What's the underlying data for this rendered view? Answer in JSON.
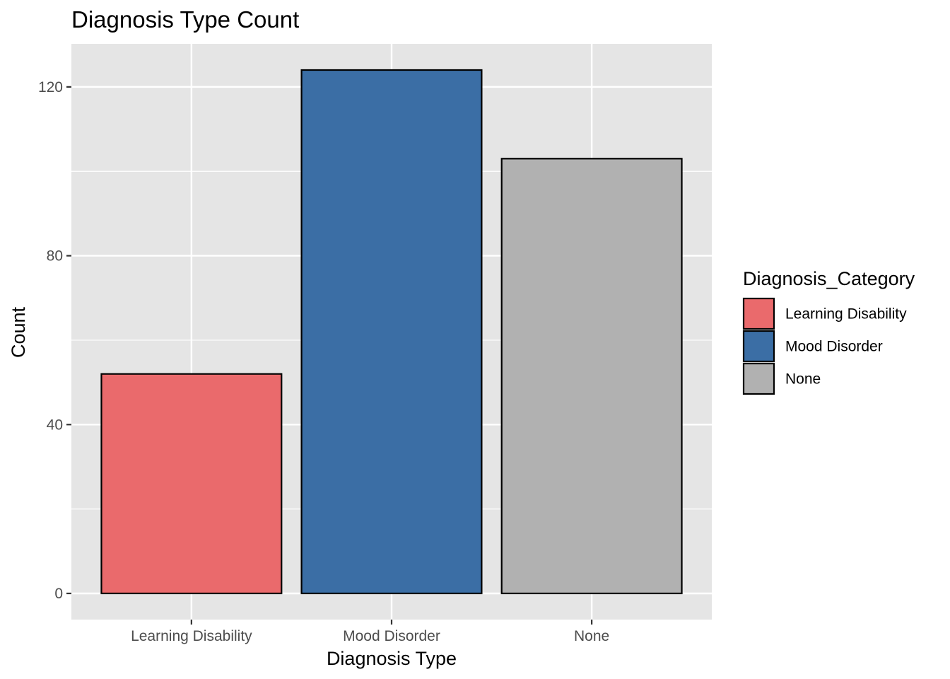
{
  "chart_data": {
    "type": "bar",
    "title": "Diagnosis Type Count",
    "xlabel": "Diagnosis Type",
    "ylabel": "Count",
    "categories": [
      "Learning Disability",
      "Mood Disorder",
      "None"
    ],
    "values": [
      52,
      124,
      103
    ],
    "colors": [
      "#EA6A6C",
      "#3B6EA5",
      "#B1B1B1"
    ],
    "ylim": [
      -6.2,
      130.2
    ],
    "yticks": [
      0,
      40,
      80,
      120
    ],
    "grid": true,
    "panel_background": "#E5E5E5",
    "legend": {
      "title": "Diagnosis_Category",
      "position": "right",
      "entries": [
        "Learning Disability",
        "Mood Disorder",
        "None"
      ]
    }
  }
}
